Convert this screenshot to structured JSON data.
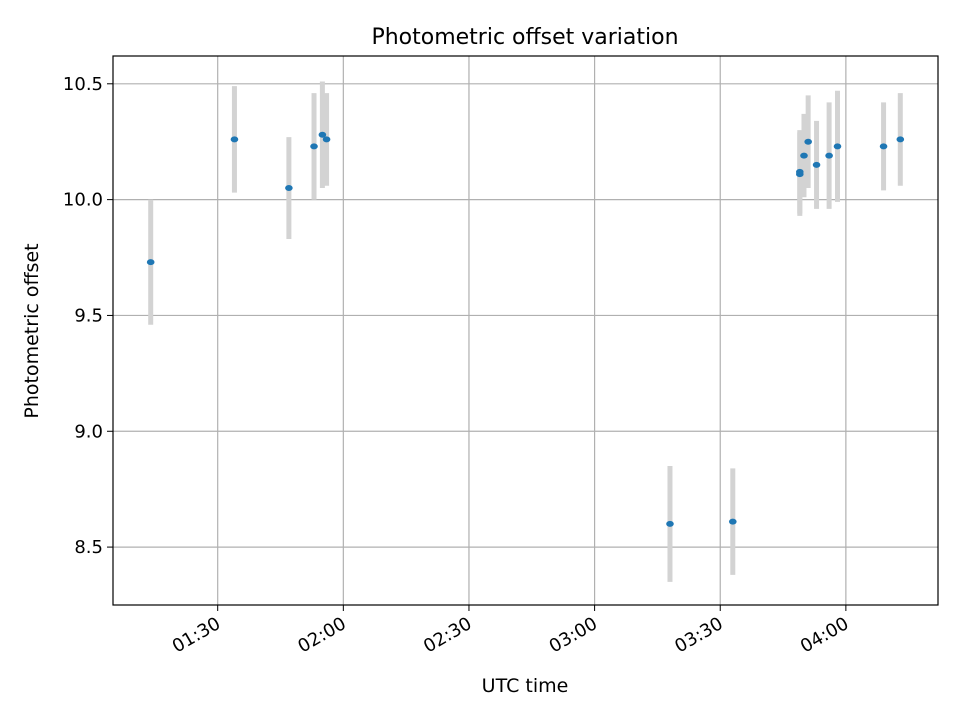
{
  "chart_data": {
    "type": "scatter",
    "title": "Photometric offset variation",
    "xlabel": "UTC time",
    "ylabel": "Photometric offset",
    "xlim": [
      "01:05",
      "04:22"
    ],
    "ylim": [
      8.25,
      10.62
    ],
    "x_ticks": [
      "01:30",
      "02:00",
      "02:30",
      "03:00",
      "03:30",
      "04:00"
    ],
    "y_ticks": [
      8.5,
      9.0,
      9.5,
      10.0,
      10.5
    ],
    "grid": true,
    "marker_color": "#1f77b4",
    "errorbar_color": "#d3d3d3",
    "points": [
      {
        "x": "01:14",
        "y": 9.73,
        "err": 0.27
      },
      {
        "x": "01:34",
        "y": 10.26,
        "err": 0.23
      },
      {
        "x": "01:47",
        "y": 10.05,
        "err": 0.22
      },
      {
        "x": "01:53",
        "y": 10.23,
        "err": 0.23
      },
      {
        "x": "01:55",
        "y": 10.28,
        "err": 0.23
      },
      {
        "x": "01:56",
        "y": 10.26,
        "err": 0.2
      },
      {
        "x": "03:18",
        "y": 8.6,
        "err": 0.25
      },
      {
        "x": "03:33",
        "y": 8.61,
        "err": 0.23
      },
      {
        "x": "03:49",
        "y": 10.11,
        "err": 0.18
      },
      {
        "x": "03:49",
        "y": 10.12,
        "err": 0.18
      },
      {
        "x": "03:50",
        "y": 10.19,
        "err": 0.18
      },
      {
        "x": "03:51",
        "y": 10.25,
        "err": 0.2
      },
      {
        "x": "03:53",
        "y": 10.15,
        "err": 0.19
      },
      {
        "x": "03:56",
        "y": 10.19,
        "err": 0.23
      },
      {
        "x": "03:58",
        "y": 10.23,
        "err": 0.24
      },
      {
        "x": "04:09",
        "y": 10.23,
        "err": 0.19
      },
      {
        "x": "04:13",
        "y": 10.26,
        "err": 0.2
      }
    ]
  }
}
